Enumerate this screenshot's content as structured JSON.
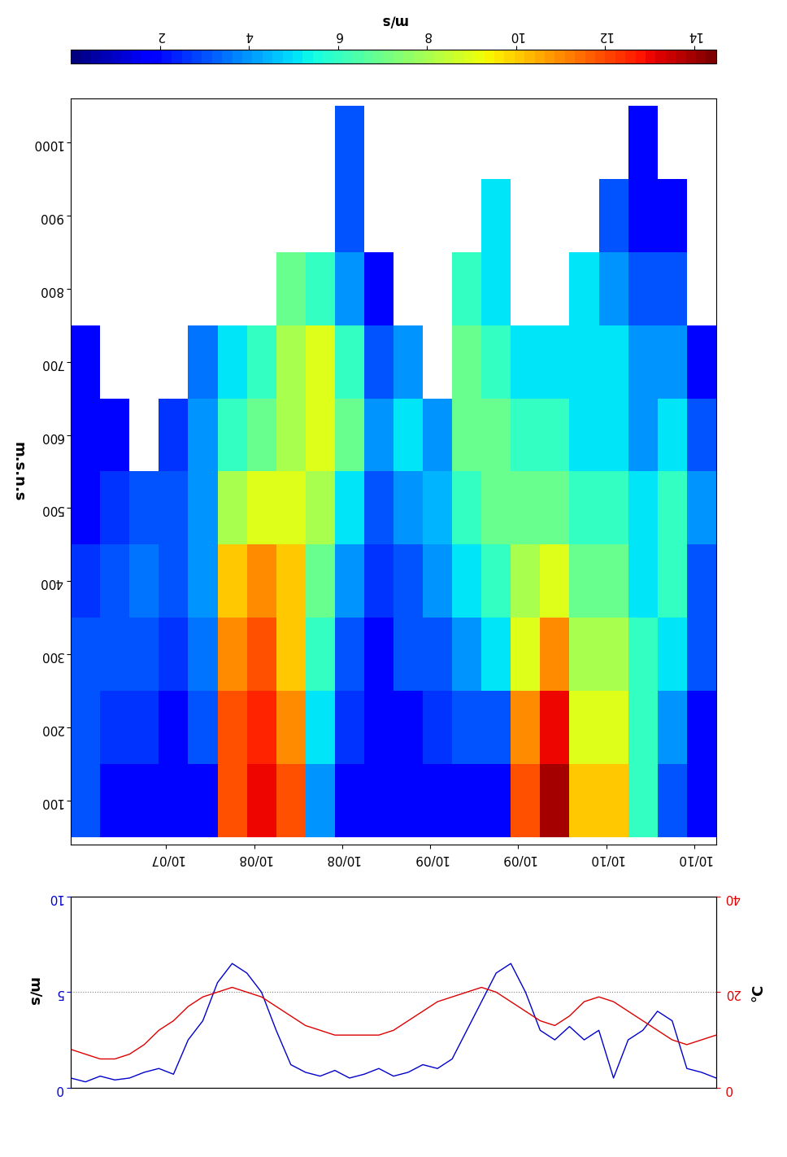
{
  "chart_data": [
    {
      "type": "heatmap",
      "ylabel": "m.s.n.s",
      "x_edges": [
        0,
        4,
        8,
        12,
        16,
        20,
        24,
        28,
        32,
        36,
        40,
        44,
        48,
        52,
        56,
        60,
        64,
        68,
        72,
        76,
        80,
        84,
        88
      ],
      "y_edges": [
        50,
        150,
        250,
        350,
        450,
        550,
        650,
        750,
        850,
        950,
        1050
      ],
      "cells": [
        [
          3,
          3,
          3,
          2.5,
          2,
          2,
          2,
          null,
          null,
          null
        ],
        [
          2,
          2.5,
          3,
          3,
          2.5,
          2,
          null,
          null,
          null,
          null
        ],
        [
          2,
          2.5,
          3,
          3.5,
          3,
          null,
          null,
          null,
          null,
          null
        ],
        [
          2,
          2,
          2.5,
          3,
          3,
          2.5,
          null,
          null,
          null,
          null
        ],
        [
          2,
          3,
          3.5,
          4,
          4,
          4,
          3.5,
          null,
          null,
          null
        ],
        [
          12,
          12,
          11,
          10,
          8,
          6,
          5,
          null,
          null,
          null
        ],
        [
          13,
          12.5,
          12,
          11,
          9,
          7,
          6,
          null,
          null,
          null
        ],
        [
          12,
          11,
          10,
          10,
          9,
          8,
          8,
          7,
          null,
          null
        ],
        [
          4,
          5,
          6,
          7,
          8,
          9,
          9,
          6,
          null,
          null
        ],
        [
          2,
          2.5,
          3,
          4,
          5,
          7,
          6,
          4,
          3,
          3
        ],
        [
          2,
          2,
          2,
          2.5,
          3,
          4,
          3,
          2,
          null,
          null
        ],
        [
          2,
          2,
          3,
          3,
          4,
          5,
          4,
          null,
          null,
          null
        ],
        [
          2,
          2.5,
          3,
          4,
          4.5,
          4,
          null,
          null,
          null,
          null
        ],
        [
          2,
          3,
          4,
          5,
          6,
          7,
          7,
          6,
          null,
          null
        ],
        [
          2,
          3,
          5,
          6,
          7,
          7,
          6,
          5,
          5,
          null
        ],
        [
          12,
          11,
          9,
          8,
          7,
          6,
          5,
          null,
          null,
          null
        ],
        [
          14,
          13,
          11,
          9,
          7,
          6,
          5,
          null,
          null,
          null
        ],
        [
          10,
          9,
          8,
          7,
          6,
          5,
          5,
          5,
          null,
          null
        ],
        [
          10,
          9,
          8,
          7,
          6,
          5,
          5,
          4,
          3,
          null
        ],
        [
          6,
          6,
          6,
          5,
          5,
          4,
          4,
          3,
          2,
          2
        ],
        [
          3,
          4,
          5,
          6,
          6,
          5,
          4,
          3,
          2,
          null
        ],
        [
          2,
          2,
          3,
          3,
          4,
          3,
          2,
          null,
          null,
          null
        ]
      ],
      "xlim": [
        0,
        88
      ],
      "xticks": [
        {
          "value": 13,
          "label": "10/07"
        },
        {
          "value": 25,
          "label": "10/08"
        },
        {
          "value": 37,
          "label": "10/08"
        },
        {
          "value": 49,
          "label": "10/09"
        },
        {
          "value": 61,
          "label": "10/09"
        },
        {
          "value": 73,
          "label": "10/10"
        },
        {
          "value": 85,
          "label": "10/10"
        }
      ],
      "ylim": [
        40,
        1060
      ],
      "yticks": [
        100,
        200,
        300,
        400,
        500,
        600,
        700,
        800,
        900,
        1000
      ],
      "colorbar": {
        "label": "m/s",
        "range": [
          0,
          14.5
        ],
        "ticks": [
          2,
          4,
          6,
          8,
          10,
          12,
          14
        ]
      }
    },
    {
      "type": "line",
      "ylabel": "m/s",
      "y2label": "°C",
      "x": [
        0,
        2,
        4,
        6,
        8,
        10,
        12,
        14,
        16,
        18,
        20,
        22,
        24,
        26,
        28,
        30,
        32,
        34,
        36,
        38,
        40,
        42,
        44,
        46,
        48,
        50,
        52,
        54,
        56,
        58,
        60,
        62,
        64,
        66,
        68,
        70,
        72,
        74,
        76,
        78,
        80,
        82,
        84,
        86,
        88
      ],
      "series": [
        {
          "color": "#0000cc",
          "values": [
            0.5,
            0.3,
            0.6,
            0.4,
            0.5,
            0.8,
            1.0,
            0.7,
            2.5,
            3.5,
            5.5,
            6.5,
            6.0,
            5.0,
            3.0,
            1.2,
            0.8,
            0.6,
            0.9,
            0.5,
            0.7,
            1.0,
            0.6,
            0.8,
            1.2,
            1.0,
            1.5,
            3.0,
            4.5,
            6.0,
            6.5,
            5.0,
            3.0,
            2.5,
            3.2,
            2.5,
            3.0,
            0.5,
            2.5,
            3.0,
            4.0,
            3.5,
            1.0,
            0.8,
            0.5
          ]
        },
        {
          "color": "#dd0000",
          "axis": "y2",
          "values": [
            8,
            7,
            6,
            6,
            7,
            9,
            12,
            14,
            17,
            19,
            20,
            21,
            20,
            19,
            17,
            15,
            13,
            12,
            11,
            11,
            11,
            11,
            12,
            14,
            16,
            18,
            19,
            20,
            21,
            20,
            18,
            16,
            14,
            13,
            15,
            18,
            19,
            18,
            16,
            14,
            12,
            10,
            9,
            10,
            11
          ]
        }
      ],
      "xlim": [
        0,
        88
      ],
      "ylim": [
        0,
        10
      ],
      "yticks": [
        0,
        5,
        10
      ],
      "y2lim": [
        0,
        40
      ],
      "y2ticks": [
        0,
        20,
        40
      ],
      "grid": true,
      "tick_labels": "y"
    }
  ]
}
